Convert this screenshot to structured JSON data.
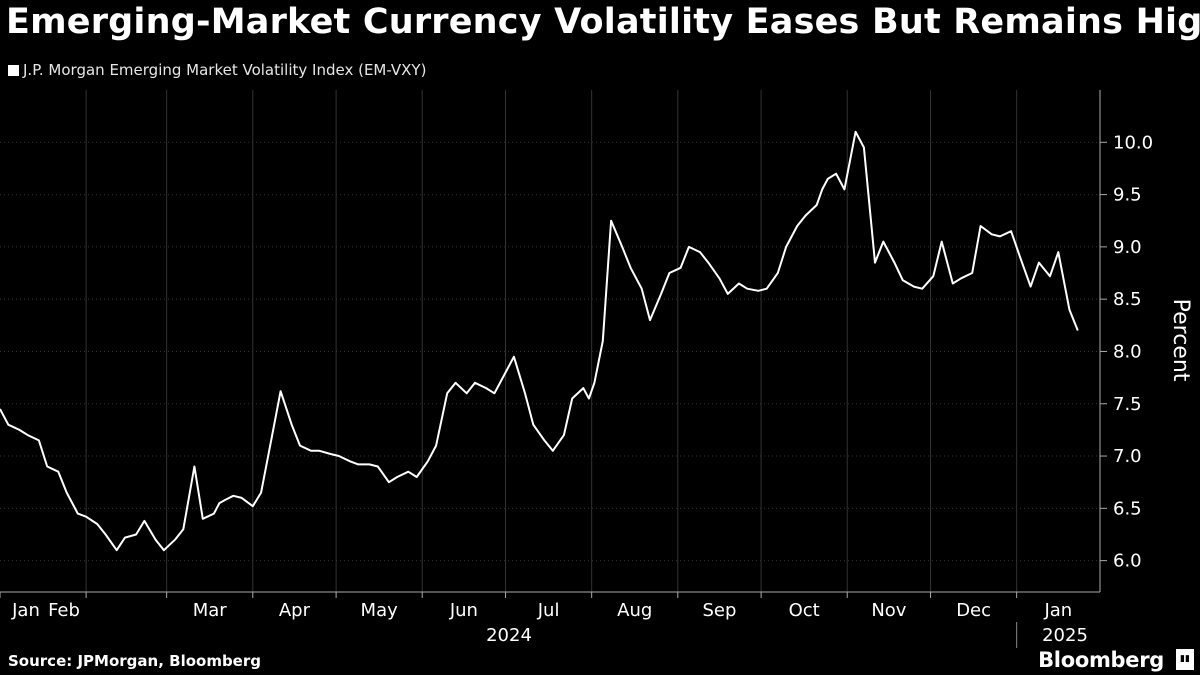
{
  "header": {
    "title": "Emerging-Market Currency Volatility Eases But Remains High"
  },
  "footer": {
    "source": "Source: JPMorgan, Bloomberg",
    "brand": "Bloomberg"
  },
  "colors": {
    "background": "#000000",
    "line": "#ffffff",
    "grid": "#333333",
    "text": "#ffffff"
  },
  "chart_data": {
    "type": "line",
    "title": "Emerging-Market Currency Volatility Eases But Remains High",
    "ylabel": "Percent",
    "xlabel": "",
    "ylim": [
      5.7,
      10.5
    ],
    "yticks": [
      6.0,
      6.5,
      7.0,
      7.5,
      8.0,
      8.5,
      9.0,
      9.5,
      10.0
    ],
    "grid": true,
    "legend_position": "top-left",
    "x_tick_labels": [
      "Jan",
      "Feb",
      "Mar",
      "Apr",
      "May",
      "Jun",
      "Jul",
      "Aug",
      "Sep",
      "Oct",
      "Nov",
      "Dec",
      "Jan"
    ],
    "x_year_labels": [
      "2024",
      "2025"
    ],
    "series": [
      {
        "name": "J.P. Morgan Emerging Market Volatility Index (EM-VXY)",
        "x": [
          "2024-01-01",
          "2024-01-04",
          "2024-01-08",
          "2024-01-11",
          "2024-01-15",
          "2024-01-18",
          "2024-01-22",
          "2024-01-25",
          "2024-01-29",
          "2024-02-01",
          "2024-02-05",
          "2024-02-08",
          "2024-02-12",
          "2024-02-15",
          "2024-02-19",
          "2024-02-22",
          "2024-02-26",
          "2024-02-29",
          "2024-03-04",
          "2024-03-07",
          "2024-03-11",
          "2024-03-14",
          "2024-03-18",
          "2024-03-20",
          "2024-03-22",
          "2024-03-25",
          "2024-03-28",
          "2024-04-01",
          "2024-04-04",
          "2024-04-08",
          "2024-04-11",
          "2024-04-15",
          "2024-04-18",
          "2024-04-22",
          "2024-04-25",
          "2024-04-29",
          "2024-05-02",
          "2024-05-06",
          "2024-05-09",
          "2024-05-13",
          "2024-05-16",
          "2024-05-20",
          "2024-05-23",
          "2024-05-27",
          "2024-05-30",
          "2024-06-03",
          "2024-06-06",
          "2024-06-10",
          "2024-06-13",
          "2024-06-17",
          "2024-06-20",
          "2024-06-24",
          "2024-06-27",
          "2024-07-01",
          "2024-07-04",
          "2024-07-08",
          "2024-07-11",
          "2024-07-15",
          "2024-07-18",
          "2024-07-22",
          "2024-07-25",
          "2024-07-29",
          "2024-07-31",
          "2024-08-02",
          "2024-08-05",
          "2024-08-08",
          "2024-08-12",
          "2024-08-15",
          "2024-08-19",
          "2024-08-22",
          "2024-08-26",
          "2024-08-29",
          "2024-09-02",
          "2024-09-05",
          "2024-09-09",
          "2024-09-12",
          "2024-09-16",
          "2024-09-19",
          "2024-09-23",
          "2024-09-26",
          "2024-09-30",
          "2024-10-03",
          "2024-10-07",
          "2024-10-10",
          "2024-10-14",
          "2024-10-17",
          "2024-10-21",
          "2024-10-23",
          "2024-10-25",
          "2024-10-28",
          "2024-10-31",
          "2024-11-04",
          "2024-11-07",
          "2024-11-11",
          "2024-11-14",
          "2024-11-18",
          "2024-11-21",
          "2024-11-25",
          "2024-11-28",
          "2024-12-02",
          "2024-12-05",
          "2024-12-09",
          "2024-12-12",
          "2024-12-16",
          "2024-12-19",
          "2024-12-23",
          "2024-12-26",
          "2024-12-30",
          "2025-01-02",
          "2025-01-06",
          "2025-01-09",
          "2025-01-13",
          "2025-01-16",
          "2025-01-20",
          "2025-01-23"
        ],
        "values": [
          7.45,
          7.3,
          7.25,
          7.2,
          7.15,
          6.9,
          6.85,
          6.65,
          6.45,
          6.42,
          6.35,
          6.25,
          6.1,
          6.22,
          6.25,
          6.38,
          6.2,
          6.1,
          6.2,
          6.3,
          6.9,
          6.4,
          6.45,
          6.55,
          6.58,
          6.62,
          6.6,
          6.52,
          6.65,
          7.2,
          7.62,
          7.3,
          7.1,
          7.05,
          7.05,
          7.02,
          7.0,
          6.95,
          6.92,
          6.92,
          6.9,
          6.75,
          6.8,
          6.85,
          6.8,
          6.95,
          7.1,
          7.6,
          7.7,
          7.6,
          7.7,
          7.65,
          7.6,
          7.8,
          7.95,
          7.6,
          7.3,
          7.15,
          7.05,
          7.2,
          7.55,
          7.65,
          7.55,
          7.7,
          8.1,
          9.25,
          9.0,
          8.8,
          8.6,
          8.3,
          8.55,
          8.75,
          8.8,
          9.0,
          8.95,
          8.85,
          8.7,
          8.55,
          8.65,
          8.6,
          8.58,
          8.6,
          8.75,
          9.0,
          9.2,
          9.3,
          9.4,
          9.55,
          9.65,
          9.7,
          9.55,
          10.1,
          9.95,
          8.85,
          9.05,
          8.85,
          8.68,
          8.62,
          8.6,
          8.72,
          9.05,
          8.65,
          8.7,
          8.75,
          9.2,
          9.12,
          9.1,
          9.15,
          8.92,
          8.62,
          8.85,
          8.72,
          8.95,
          8.4,
          8.2
        ]
      }
    ]
  }
}
